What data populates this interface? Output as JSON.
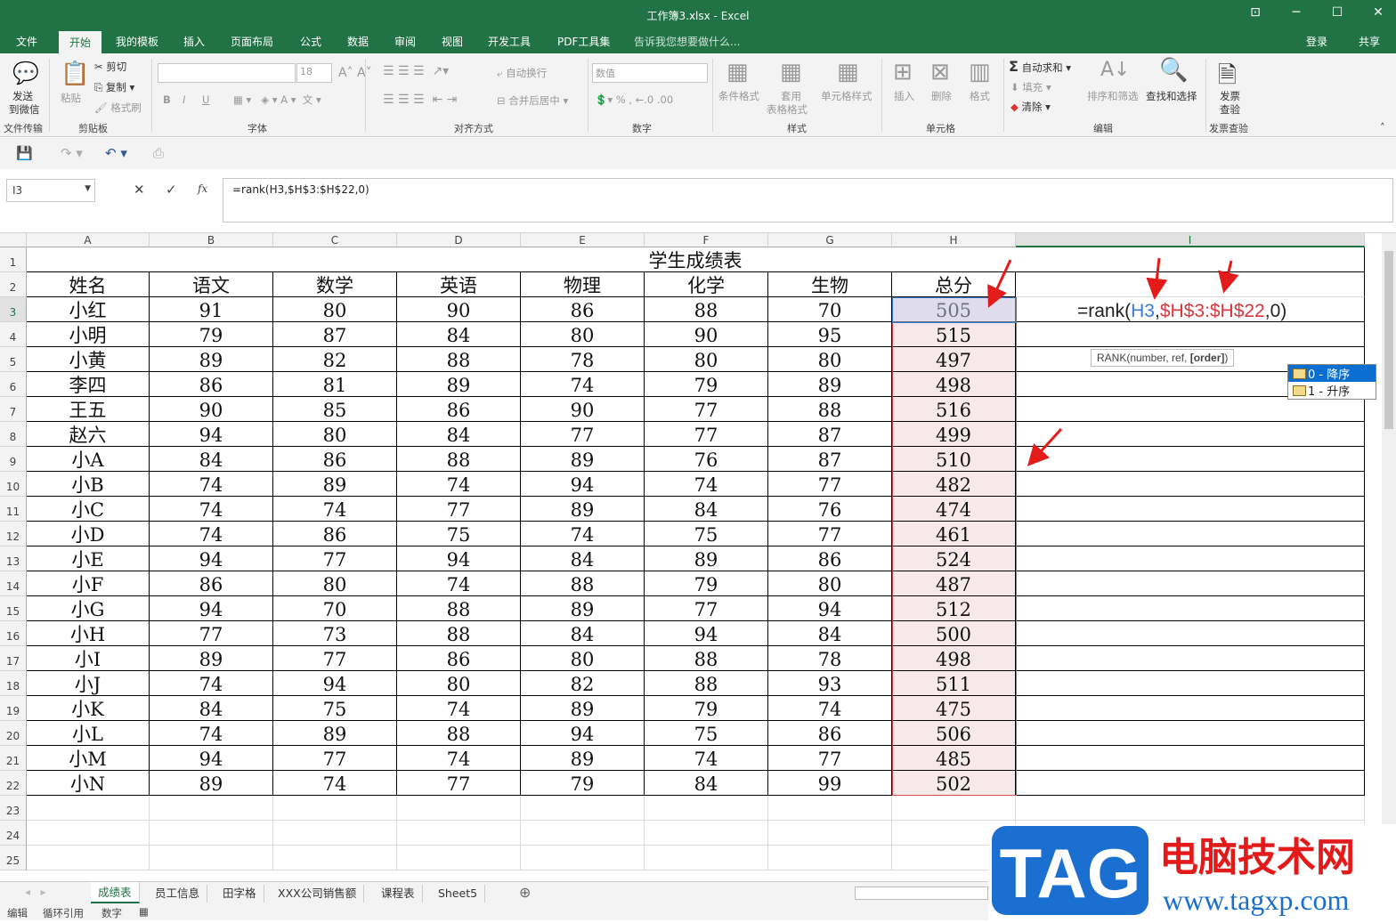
{
  "window": {
    "title": "工作簿3.xlsx - Excel"
  },
  "menu": {
    "tabs": [
      "文件",
      "开始",
      "我的模板",
      "插入",
      "页面布局",
      "公式",
      "数据",
      "审阅",
      "视图",
      "开发工具",
      "PDF工具集"
    ],
    "active": "开始",
    "tell_me": "告诉我您想要做什么...",
    "login": "登录",
    "share": "共享"
  },
  "ribbon": {
    "wechat": "发送到微信",
    "wechat2": "到微信",
    "wechat1": "发送",
    "group_file": "文件传输",
    "paste": "粘贴",
    "cut": "剪切",
    "copy": "复制",
    "format_painter": "格式刷",
    "group_clip": "剪贴板",
    "font_size": "18",
    "group_font": "字体",
    "bold": "B",
    "italic": "I",
    "underline": "U",
    "wrap": "自动换行",
    "merge": "合并后居中",
    "group_align": "对齐方式",
    "number_format": "数值",
    "group_number": "数字",
    "cond_format": "条件格式",
    "table_format1": "套用",
    "table_format2": "表格格式",
    "cell_style": "单元格样式",
    "group_style": "样式",
    "insert": "插入",
    "delete": "删除",
    "format": "格式",
    "group_cells": "单元格",
    "autosum": "自动求和",
    "fill": "填充",
    "clear": "清除",
    "sort": "排序和筛选",
    "find": "查找和选择",
    "group_edit": "编辑",
    "invoice1": "发票",
    "invoice2": "查验",
    "group_invoice": "发票查验"
  },
  "formula_bar": {
    "name_box": "I3",
    "formula": "=rank(H3,$H$3:$H$22,0)",
    "fx": "fx"
  },
  "sheet": {
    "columns": [
      "A",
      "B",
      "C",
      "D",
      "E",
      "F",
      "G",
      "H",
      "I"
    ],
    "title": "学生成绩表",
    "headers": [
      "姓名",
      "语文",
      "数学",
      "英语",
      "物理",
      "化学",
      "生物",
      "总分"
    ],
    "rows": [
      [
        "小红",
        91,
        80,
        90,
        86,
        88,
        70,
        505
      ],
      [
        "小明",
        79,
        87,
        84,
        80,
        90,
        95,
        515
      ],
      [
        "小黄",
        89,
        82,
        88,
        78,
        80,
        80,
        497
      ],
      [
        "李四",
        86,
        81,
        89,
        74,
        79,
        89,
        498
      ],
      [
        "王五",
        90,
        85,
        86,
        90,
        77,
        88,
        516
      ],
      [
        "赵六",
        94,
        80,
        84,
        77,
        77,
        87,
        499
      ],
      [
        "小A",
        84,
        86,
        88,
        89,
        76,
        87,
        510
      ],
      [
        "小B",
        74,
        89,
        74,
        94,
        74,
        77,
        482
      ],
      [
        "小C",
        74,
        74,
        77,
        89,
        84,
        76,
        474
      ],
      [
        "小D",
        74,
        86,
        75,
        74,
        75,
        77,
        461
      ],
      [
        "小E",
        94,
        77,
        94,
        84,
        89,
        86,
        524
      ],
      [
        "小F",
        86,
        80,
        74,
        88,
        79,
        80,
        487
      ],
      [
        "小G",
        94,
        70,
        88,
        89,
        77,
        94,
        512
      ],
      [
        "小H",
        77,
        73,
        88,
        84,
        94,
        84,
        500
      ],
      [
        "小I",
        89,
        77,
        86,
        80,
        88,
        78,
        498
      ],
      [
        "小J",
        74,
        94,
        80,
        82,
        88,
        93,
        511
      ],
      [
        "小K",
        84,
        75,
        74,
        89,
        79,
        74,
        475
      ],
      [
        "小L",
        74,
        89,
        88,
        94,
        75,
        86,
        506
      ],
      [
        "小M",
        94,
        77,
        74,
        89,
        74,
        77,
        485
      ],
      [
        "小N",
        89,
        74,
        77,
        79,
        84,
        99,
        502
      ]
    ],
    "row_numbers": 25,
    "editing": {
      "prefix": "=rank(",
      "arg1": "H3",
      "comma": ",",
      "arg2": "$H$3:$H$22",
      "suffix": ",0)"
    },
    "tooltip": {
      "text": "RANK(number, ref, ",
      "bold": "[order]",
      "end": ")"
    },
    "autocomplete": [
      "0 - 降序",
      "1 - 升序"
    ]
  },
  "sheet_tabs": [
    "成绩表",
    "员工信息",
    "田字格",
    "XXX公司销售额",
    "课程表",
    "Sheet5"
  ],
  "status": [
    "编辑",
    "循环引用",
    "数字"
  ],
  "watermark": {
    "logo": "TAG",
    "site": "电脑技术网",
    "url": "www.tagxp.com"
  },
  "colors": {
    "excel_green": "#217346",
    "ref_blue": "#3a7bd5",
    "ref_red": "#d9363e",
    "highlight": "#f7e9ea"
  }
}
